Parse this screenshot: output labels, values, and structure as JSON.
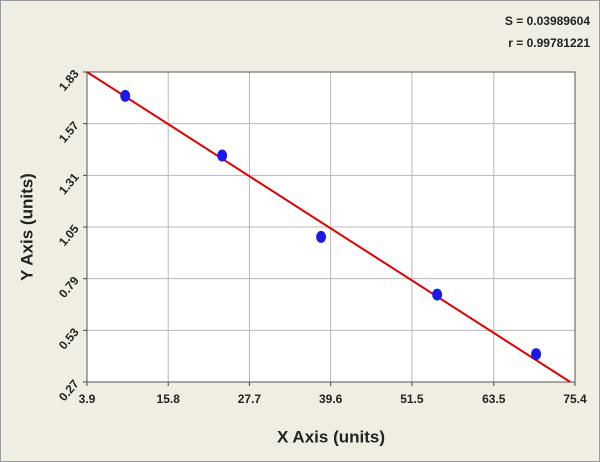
{
  "chart_data": {
    "type": "scatter",
    "x_label": "X Axis (units)",
    "y_label": "Y Axis (units)",
    "annotations": [
      "S = 0.03989604",
      "r = 0.99781221"
    ],
    "x": [
      9.5,
      23.7,
      38.2,
      55.2,
      69.7
    ],
    "values": [
      1.71,
      1.41,
      1.0,
      0.71,
      0.41
    ],
    "color": "#1a1ae6",
    "fit": {
      "x": [
        3.9,
        74.7
      ],
      "y": [
        1.83,
        0.27
      ],
      "color": "#e00000"
    },
    "xlim": [
      3.9,
      75.4
    ],
    "xticks": [
      3.9,
      15.8,
      27.7,
      39.6,
      51.5,
      63.5,
      75.4
    ],
    "ylim": [
      0.27,
      1.83
    ],
    "yticks": [
      0.27,
      0.53,
      0.79,
      1.05,
      1.31,
      1.57,
      1.83
    ],
    "grid": true
  }
}
